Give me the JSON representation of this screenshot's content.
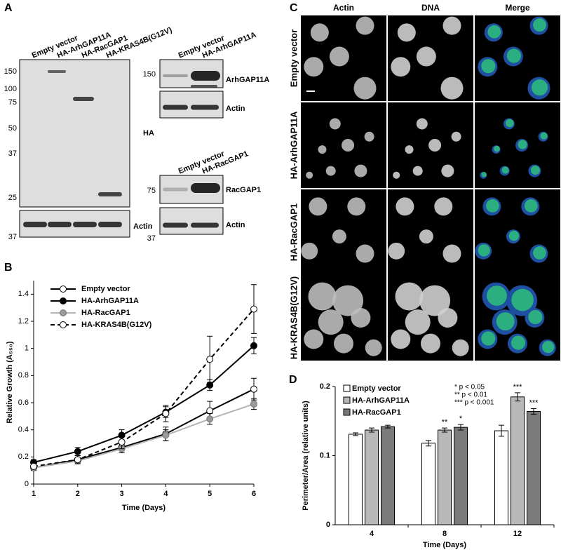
{
  "panels": {
    "A": {
      "label": "A",
      "blot1": {
        "lanes": [
          "Empty vector",
          "HA-ArhGAP11A",
          "HA-RacGAP1",
          "HA-KRAS4B(G12V)"
        ],
        "markers": [
          150,
          100,
          75,
          50,
          37,
          25
        ],
        "band_label": "HA",
        "actin_label": "Actin",
        "actin_markers": [
          37
        ]
      },
      "blot2": {
        "lanes": [
          "Empty vector",
          "HA-ArhGAP11A"
        ],
        "markers": [
          150
        ],
        "band_label": "ArhGAP11A",
        "actin_label": "Actin"
      },
      "blot3": {
        "lanes": [
          "Empty vector",
          "HA-RacGAP1"
        ],
        "markers": [
          75
        ],
        "band_label": "RacGAP1",
        "actin_label": "Actin",
        "actin_markers": [
          37
        ]
      }
    },
    "B": {
      "label": "B"
    },
    "C": {
      "label": "C",
      "columns": [
        "Actin",
        "DNA",
        "Merge"
      ],
      "rows": [
        "Empty vector",
        "HA-ArhGAP11A",
        "HA-RacGAP1",
        "HA-KRAS4B(G12V)"
      ]
    },
    "D": {
      "label": "D",
      "key": [
        "* p < 0.05",
        "** p < 0.01",
        "*** p < 0.001"
      ]
    }
  },
  "chart_data": [
    {
      "type": "line",
      "xlabel": "Time (Days)",
      "ylabel": "Relative Growth (A₅₅₀)",
      "x": [
        1,
        2,
        3,
        4,
        5,
        6
      ],
      "xlim": [
        1,
        6
      ],
      "xticks": [
        1,
        2,
        3,
        4,
        5,
        6
      ],
      "ylim": [
        0,
        1.5
      ],
      "yticks": [
        0,
        0.2,
        0.4,
        0.6,
        0.8,
        1,
        1.2,
        1.4
      ],
      "series": [
        {
          "name": "Empty vector",
          "color": "#000000",
          "marker_fill": "#ffffff",
          "dash": false,
          "values": [
            0.12,
            0.18,
            0.27,
            0.37,
            0.54,
            0.7
          ],
          "errors": [
            0.02,
            0.03,
            0.04,
            0.05,
            0.07,
            0.08
          ]
        },
        {
          "name": "HA-ArhGAP11A",
          "color": "#000000",
          "marker_fill": "#000000",
          "dash": false,
          "values": [
            0.16,
            0.24,
            0.36,
            0.53,
            0.73,
            1.02
          ],
          "errors": [
            0.02,
            0.03,
            0.04,
            0.04,
            0.04,
            0.06
          ]
        },
        {
          "name": "HA-RacGAP1",
          "color": "#b4b4b4",
          "marker_fill": "#9a9a9a",
          "dash": false,
          "values": [
            0.12,
            0.17,
            0.26,
            0.36,
            0.48,
            0.59
          ],
          "errors": [
            0.02,
            0.02,
            0.03,
            0.04,
            0.04,
            0.04
          ]
        },
        {
          "name": "HA-KRAS4B(G12V)",
          "color": "#000000",
          "marker_fill": "#ffffff",
          "dash": true,
          "values": [
            0.13,
            0.18,
            0.31,
            0.52,
            0.92,
            1.29
          ],
          "errors": [
            0.02,
            0.03,
            0.05,
            0.06,
            0.17,
            0.18
          ]
        }
      ]
    },
    {
      "type": "bar",
      "xlabel": "Time (Days)",
      "ylabel": "Perimeter/Area (relative units)",
      "categories": [
        "4",
        "8",
        "12"
      ],
      "ylim": [
        0,
        0.2
      ],
      "yticks": [
        0,
        0.1,
        0.2
      ],
      "series": [
        {
          "name": "Empty vector",
          "color": "#ffffff",
          "values": [
            0.131,
            0.118,
            0.136
          ],
          "errors": [
            0.002,
            0.004,
            0.008
          ],
          "significance": [
            null,
            null,
            null
          ]
        },
        {
          "name": "HA-ArhGAP11A",
          "color": "#b8b8b8",
          "values": [
            0.137,
            0.137,
            0.185
          ],
          "errors": [
            0.003,
            0.003,
            0.006
          ],
          "significance": [
            null,
            "**",
            "***"
          ]
        },
        {
          "name": "HA-RacGAP1",
          "color": "#7a7a7a",
          "values": [
            0.142,
            0.141,
            0.164
          ],
          "errors": [
            0.002,
            0.004,
            0.004
          ],
          "significance": [
            null,
            "*",
            "***"
          ]
        }
      ]
    }
  ]
}
